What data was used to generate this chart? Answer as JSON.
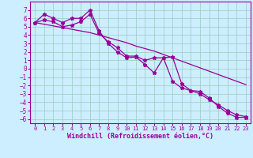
{
  "x_values": [
    0,
    1,
    2,
    3,
    4,
    5,
    6,
    7,
    8,
    9,
    10,
    11,
    12,
    13,
    14,
    15,
    16,
    17,
    18,
    19,
    20,
    21,
    22,
    23
  ],
  "line1_y": [
    5.5,
    6.5,
    6.0,
    5.5,
    6.0,
    6.0,
    7.0,
    4.5,
    3.0,
    2.0,
    1.3,
    1.4,
    0.5,
    -0.5,
    1.3,
    1.4,
    -1.8,
    -2.6,
    -2.7,
    -3.5,
    -4.5,
    -5.3,
    -5.8,
    -5.8
  ],
  "line2_y": [
    5.5,
    5.3,
    5.1,
    4.9,
    4.7,
    4.5,
    4.3,
    4.0,
    3.7,
    3.4,
    3.1,
    2.7,
    2.4,
    2.1,
    1.7,
    1.3,
    0.9,
    0.5,
    0.1,
    -0.3,
    -0.7,
    -1.1,
    -1.5,
    -1.9
  ],
  "line3_y": [
    5.5,
    5.8,
    5.6,
    5.0,
    5.2,
    5.6,
    6.5,
    4.2,
    3.2,
    2.5,
    1.5,
    1.5,
    1.0,
    1.3,
    1.3,
    -1.5,
    -2.3,
    -2.6,
    -3.0,
    -3.7,
    -4.3,
    -5.0,
    -5.5,
    -5.7
  ],
  "line_color": "#990099",
  "bg_color": "#cceeff",
  "grid_color": "#99ccbb",
  "xlabel": "Windchill (Refroidissement éolien,°C)",
  "xlabel_color": "#990099",
  "xlim": [
    -0.5,
    23.5
  ],
  "ylim": [
    -6.5,
    8.0
  ],
  "yticks": [
    -6,
    -5,
    -4,
    -3,
    -2,
    -1,
    0,
    1,
    2,
    3,
    4,
    5,
    6,
    7
  ],
  "xticks": [
    0,
    1,
    2,
    3,
    4,
    5,
    6,
    7,
    8,
    9,
    10,
    11,
    12,
    13,
    14,
    15,
    16,
    17,
    18,
    19,
    20,
    21,
    22,
    23
  ]
}
